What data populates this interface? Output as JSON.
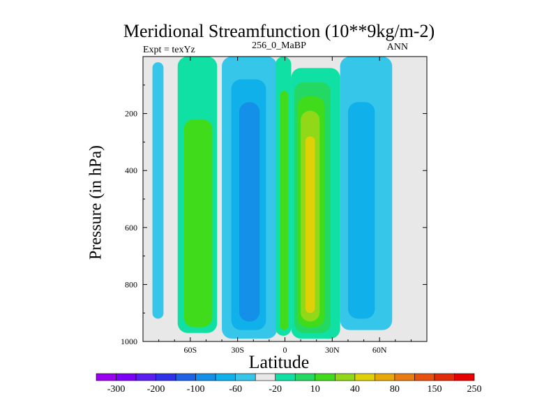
{
  "chart_data": {
    "type": "heatmap",
    "title": "Meridional Streamfunction (10**9kg/m-2)",
    "subtitle": "256_0_MaBP",
    "left_annotation": "Expt = texYz",
    "right_annotation": "ANN",
    "xlabel": "Latitude",
    "ylabel": "Pressure (in hPa)",
    "xlim": [
      -90,
      90
    ],
    "ylim": [
      1000,
      0
    ],
    "x_ticks": [
      {
        "value": -60,
        "label": "60S"
      },
      {
        "value": -30,
        "label": "30S"
      },
      {
        "value": 0,
        "label": "0"
      },
      {
        "value": 30,
        "label": "30N"
      },
      {
        "value": 60,
        "label": "60N"
      }
    ],
    "y_ticks": [
      {
        "value": 200,
        "label": "200"
      },
      {
        "value": 400,
        "label": "400"
      },
      {
        "value": 600,
        "label": "600"
      },
      {
        "value": 800,
        "label": "800"
      },
      {
        "value": 1000,
        "label": "1000"
      }
    ],
    "colorbar": {
      "colors": [
        "#9b00f0",
        "#7d00f8",
        "#5a1ef0",
        "#2f32e8",
        "#1f62e6",
        "#1490e8",
        "#10b0ea",
        "#36c6ea",
        "#e8e8e8",
        "#10e0a4",
        "#24d864",
        "#40dc1c",
        "#90d818",
        "#e0d008",
        "#e8a808",
        "#e87c10",
        "#e85010",
        "#e02c08",
        "#e80000"
      ],
      "labels": [
        {
          "index": 1,
          "label": "-300"
        },
        {
          "index": 3,
          "label": "-200"
        },
        {
          "index": 5,
          "label": "-100"
        },
        {
          "index": 7,
          "label": "-60"
        },
        {
          "index": 9,
          "label": "-20"
        },
        {
          "index": 11,
          "label": "10"
        },
        {
          "index": 13,
          "label": "40"
        },
        {
          "index": 15,
          "label": "80"
        },
        {
          "index": 17,
          "label": "150"
        },
        {
          "index": 19,
          "label": "250"
        }
      ]
    },
    "background_color": "#e8e8e8",
    "cells": [
      {
        "lat": [
          -84,
          -77
        ],
        "p": [
          20,
          920
        ],
        "color": "#36c6ea"
      },
      {
        "lat": [
          -68,
          -43
        ],
        "p": [
          0,
          970
        ],
        "color": "#10e0a4"
      },
      {
        "lat": [
          -64,
          -46
        ],
        "p": [
          220,
          950
        ],
        "color": "#40dc1c"
      },
      {
        "lat": [
          -40,
          -5
        ],
        "p": [
          0,
          990
        ],
        "color": "#36c6ea"
      },
      {
        "lat": [
          -34,
          -12
        ],
        "p": [
          80,
          960
        ],
        "color": "#10b0ea"
      },
      {
        "lat": [
          -29,
          -16
        ],
        "p": [
          160,
          930
        ],
        "color": "#1490e8"
      },
      {
        "lat": [
          -6,
          4
        ],
        "p": [
          0,
          980
        ],
        "color": "#10e0a4"
      },
      {
        "lat": [
          -3,
          2
        ],
        "p": [
          120,
          960
        ],
        "color": "#40dc1c"
      },
      {
        "lat": [
          4,
          10
        ],
        "p": [
          0,
          60
        ],
        "color": "#e8e8e8"
      },
      {
        "lat": [
          4,
          35
        ],
        "p": [
          40,
          990
        ],
        "color": "#10e0a4"
      },
      {
        "lat": [
          6,
          29
        ],
        "p": [
          90,
          970
        ],
        "color": "#24d864"
      },
      {
        "lat": [
          8,
          25
        ],
        "p": [
          140,
          950
        ],
        "color": "#40dc1c"
      },
      {
        "lat": [
          10,
          22
        ],
        "p": [
          190,
          930
        ],
        "color": "#90d818"
      },
      {
        "lat": [
          13,
          19
        ],
        "p": [
          280,
          900
        ],
        "color": "#e0d008"
      },
      {
        "lat": [
          35,
          68
        ],
        "p": [
          0,
          960
        ],
        "color": "#36c6ea"
      },
      {
        "lat": [
          40,
          57
        ],
        "p": [
          160,
          920
        ],
        "color": "#10b0ea"
      }
    ]
  }
}
